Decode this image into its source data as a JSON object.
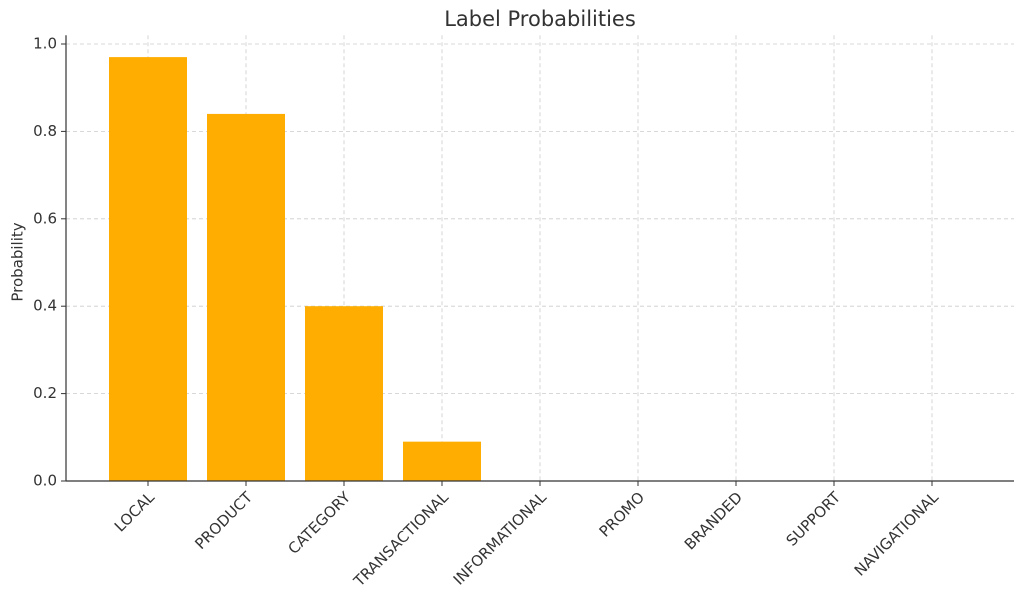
{
  "chart_data": {
    "type": "bar",
    "title": "Label Probabilities",
    "y_label": "Probability",
    "categories": [
      "LOCAL",
      "PRODUCT",
      "CATEGORY",
      "TRANSACTIONAL",
      "INFORMATIONAL",
      "PROMO",
      "BRANDED",
      "SUPPORT",
      "NAVIGATIONAL"
    ],
    "values": [
      0.97,
      0.84,
      0.4,
      0.09,
      0,
      0,
      0,
      0,
      0
    ],
    "color": "#ffad00",
    "ylim": [
      0,
      1.02
    ],
    "yticks": [
      {
        "value": 0,
        "label": "0.0"
      },
      0.2,
      0.4,
      0.6,
      0.8,
      {
        "value": 1,
        "label": "1.0"
      }
    ],
    "grid": true
  }
}
